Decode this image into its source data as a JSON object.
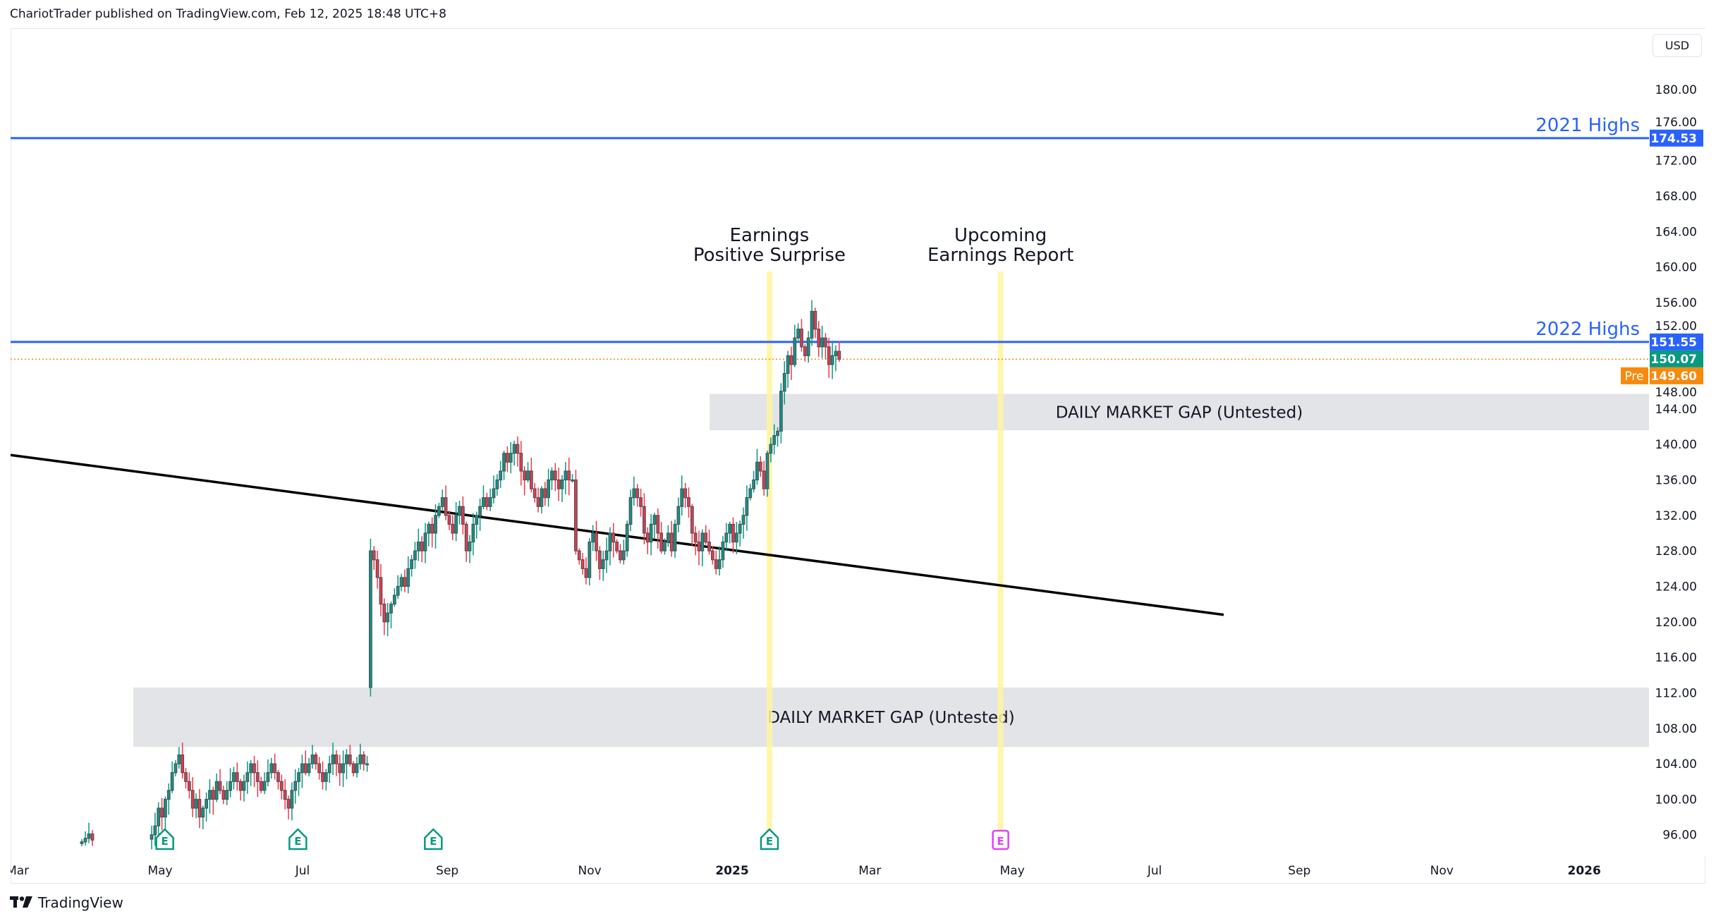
{
  "header": {
    "published": "ChariotTrader published on TradingView.com, Feb 12, 2025 18:48 UTC+8"
  },
  "currency_button": "USD",
  "footer": {
    "brand": "TradingView"
  },
  "colors": {
    "up": "#089981",
    "down": "#f23645",
    "body": "#50535e",
    "level": "#2962ff",
    "last": "#089981",
    "pre": "#f7890c",
    "highlight": "#fff59d",
    "gap": "#e3e4e8",
    "earn_past": "#089981",
    "earn_future": "#e040fb"
  },
  "chart_data": {
    "type": "candlestick",
    "ylim": [
      93.7,
      184
    ],
    "y_ticks": [
      "180.00",
      "176.00",
      "172.00",
      "168.00",
      "164.00",
      "160.00",
      "156.00",
      "152.00",
      "148.00",
      "144.00",
      "140.00",
      "136.00",
      "132.00",
      "128.00",
      "124.00",
      "120.00",
      "116.00",
      "112.00",
      "108.00",
      "104.00",
      "100.00",
      "96.00"
    ],
    "x_ticks": [
      {
        "label": "Mar",
        "days": -306,
        "bold": false
      },
      {
        "label": "May",
        "days": -245,
        "bold": false
      },
      {
        "label": "Jul",
        "days": -184,
        "bold": false
      },
      {
        "label": "Sep",
        "days": -122,
        "bold": false
      },
      {
        "label": "Nov",
        "days": -61,
        "bold": false
      },
      {
        "label": "2025",
        "days": 0,
        "bold": true
      },
      {
        "label": "Mar",
        "days": 59,
        "bold": false
      },
      {
        "label": "May",
        "days": 120,
        "bold": false
      },
      {
        "label": "Jul",
        "days": 181,
        "bold": false
      },
      {
        "label": "Sep",
        "days": 243,
        "bold": false
      },
      {
        "label": "Nov",
        "days": 304,
        "bold": false
      },
      {
        "label": "2026",
        "days": 365,
        "bold": true
      }
    ],
    "early_closes": [
      95.2,
      95.6,
      96.1,
      95.4
    ],
    "closes": [
      96,
      97,
      99,
      98,
      100,
      101,
      103,
      104,
      105,
      103,
      102,
      101,
      99,
      100,
      98,
      99,
      100,
      101,
      100,
      102,
      101,
      100,
      101,
      102,
      103,
      102,
      101,
      102,
      103,
      104,
      103,
      102,
      101,
      102,
      103,
      104,
      103,
      102,
      101,
      100,
      99,
      101,
      102,
      103,
      104,
      103,
      104,
      105,
      104,
      103,
      102,
      103,
      104,
      105,
      104,
      103,
      104,
      105,
      104,
      103,
      104,
      105,
      104,
      104,
      128,
      127,
      125,
      122,
      120,
      121,
      122,
      123,
      124,
      125,
      124,
      126,
      127,
      128,
      129,
      128,
      130,
      131,
      130,
      132,
      133,
      134,
      132,
      131,
      130,
      132,
      133,
      131,
      128,
      129,
      131,
      132,
      133,
      134,
      133,
      134,
      135,
      136,
      137,
      139,
      138,
      139,
      140,
      139,
      137,
      136,
      137,
      135,
      134,
      133,
      135,
      134,
      136,
      137,
      136,
      135,
      136,
      137,
      136,
      136,
      128,
      127,
      126,
      125,
      129,
      130,
      128,
      126,
      127,
      128,
      130,
      129,
      128,
      127,
      128,
      131,
      134,
      135,
      134,
      133,
      130,
      129,
      131,
      132,
      130,
      128,
      129,
      130,
      128,
      131,
      133,
      135,
      134,
      133,
      130,
      129,
      128,
      130,
      129,
      128,
      127,
      126,
      127,
      129,
      130,
      131,
      129,
      130,
      131,
      132,
      134,
      135,
      136,
      138,
      137,
      135,
      139,
      140,
      141,
      141.5,
      146,
      148,
      150,
      149,
      152,
      153,
      151,
      150,
      152,
      155,
      153,
      151,
      152,
      151,
      149,
      150,
      150.5,
      149.6
    ],
    "levels": [
      {
        "label": "2021 Highs",
        "price": 174.53,
        "tag": "174.53"
      },
      {
        "label": "2022 Highs",
        "price": 151.55,
        "tag": "151.55"
      }
    ],
    "last_price": {
      "price": 150.07,
      "tag": "150.07"
    },
    "pre_market": {
      "price": 149.6,
      "label": "Pre",
      "tag": "149.60"
    },
    "gaps": [
      {
        "label": "DAILY MARKET GAP (Untested)",
        "top": 145.7,
        "bottom": 141.6
      },
      {
        "label": "DAILY MARKET GAP (Untested)",
        "top": 112.6,
        "bottom": 105.9
      }
    ],
    "trendline": {
      "from_price": 138.8,
      "to_price": 120.8
    },
    "annotations": [
      {
        "line1": "Earnings",
        "line2": "Positive Surprise",
        "days": 16
      },
      {
        "line1": "Upcoming",
        "line2": "Earnings Report",
        "days": 115
      }
    ],
    "earnings_markers": [
      {
        "days": -243,
        "future": false,
        "label": "E"
      },
      {
        "days": -186,
        "future": false,
        "label": "E"
      },
      {
        "days": -128,
        "future": false,
        "label": "E"
      },
      {
        "days": 16,
        "future": false,
        "label": "E"
      },
      {
        "days": 115,
        "future": true,
        "label": "E"
      }
    ]
  }
}
